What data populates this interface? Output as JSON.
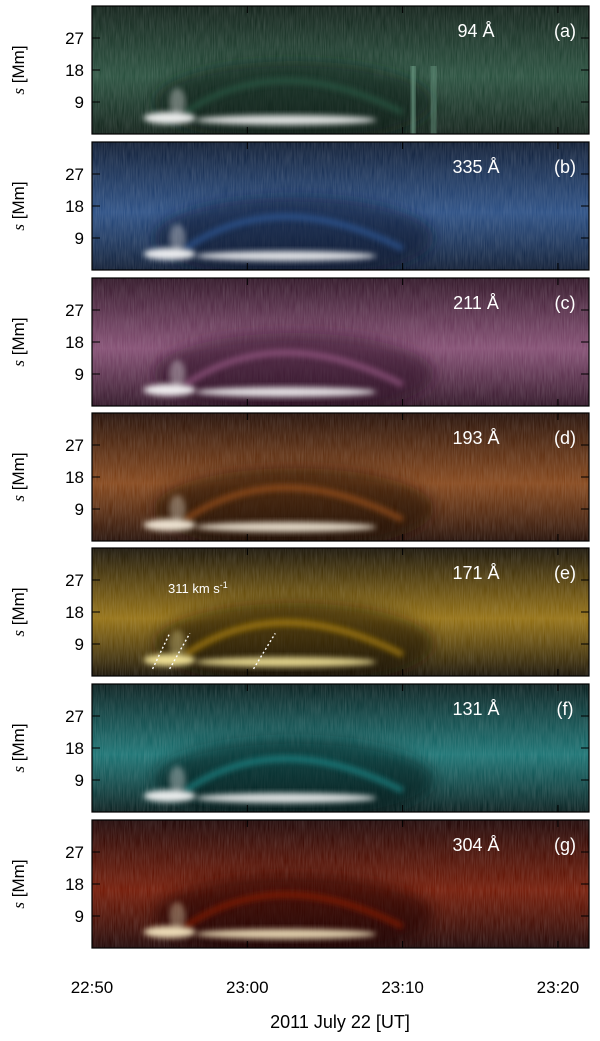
{
  "chart_data": {
    "type": "heatmap",
    "xlabel": "2011 July 22 [UT]",
    "x_ticks": [
      "22:50",
      "23:00",
      "23:10",
      "23:20"
    ],
    "x_tick_minutes": [
      0,
      10,
      20,
      30
    ],
    "xlim_minutes": [
      0,
      32
    ],
    "ylabel_var": "s",
    "ylabel_unit": " [Mm]",
    "y_ticks": [
      9,
      18,
      27
    ],
    "ylim": [
      0,
      36
    ],
    "panels": [
      {
        "wavelength": "94 Å",
        "label": "(a)",
        "colors": [
          "#0a1a12",
          "#2a5a44",
          "#ffffff"
        ]
      },
      {
        "wavelength": "335 Å",
        "label": "(b)",
        "colors": [
          "#08162e",
          "#2e5a9a",
          "#ffffff"
        ]
      },
      {
        "wavelength": "211 Å",
        "label": "(c)",
        "colors": [
          "#2a0e20",
          "#9a5a86",
          "#ffffff"
        ]
      },
      {
        "wavelength": "193 Å",
        "label": "(d)",
        "colors": [
          "#1e0800",
          "#a0521a",
          "#fff6e4"
        ]
      },
      {
        "wavelength": "171 Å",
        "label": "(e)",
        "colors": [
          "#120c00",
          "#b88a10",
          "#fff0a0"
        ]
      },
      {
        "wavelength": "131 Å",
        "label": "(f)",
        "colors": [
          "#021818",
          "#1a8a8a",
          "#ffffff"
        ]
      },
      {
        "wavelength": "304 Å",
        "label": "(g)",
        "colors": [
          "#1a0000",
          "#8a1a00",
          "#fff0c8"
        ]
      }
    ],
    "annotation": {
      "text": "311 km s",
      "superscript": "-1",
      "panel": 4
    }
  }
}
